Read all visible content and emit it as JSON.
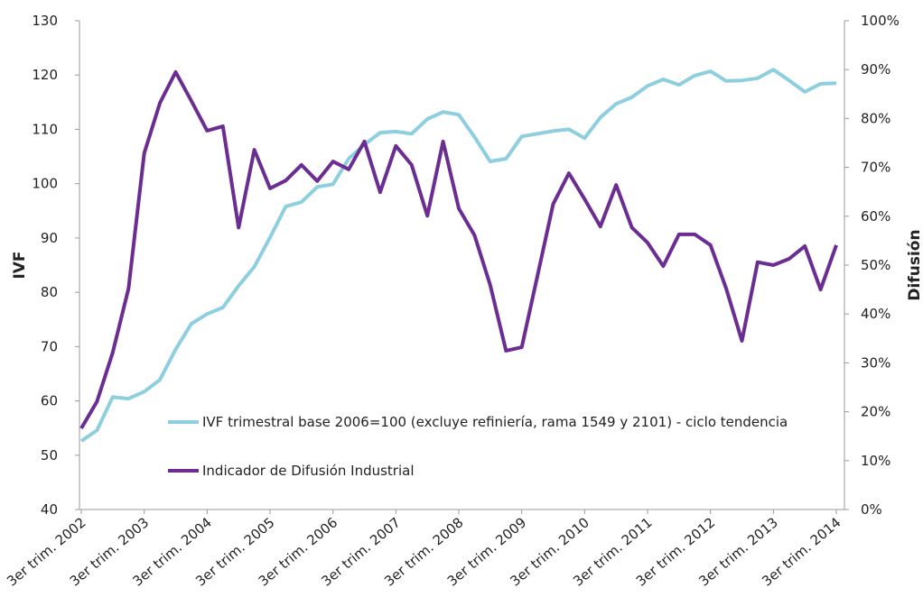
{
  "chart_data": {
    "type": "line",
    "y_label": "IVF",
    "y2_label": "Difusión",
    "categories": [
      "3er trim. 2002",
      null,
      null,
      null,
      "3er trim. 2003",
      null,
      null,
      null,
      "3er trim. 2004",
      null,
      null,
      null,
      "3er trim. 2005",
      null,
      null,
      null,
      "3er trim. 2006",
      null,
      null,
      null,
      "3er trim. 2007",
      null,
      null,
      null,
      "3er trim. 2008",
      null,
      null,
      null,
      "3er trim. 2009",
      null,
      null,
      null,
      "3er trim. 2010",
      null,
      null,
      null,
      "3er trim. 2011",
      null,
      null,
      null,
      "3er trim. 2012",
      null,
      null,
      null,
      "3er trim. 2013",
      null,
      null,
      null,
      "3er trim. 2014"
    ],
    "ylim": [
      40,
      130
    ],
    "yticks": [
      40,
      50,
      60,
      70,
      80,
      90,
      100,
      110,
      120,
      130
    ],
    "y2lim": [
      0,
      100
    ],
    "y2ticks": [
      {
        "value": 0,
        "label": "0%"
      },
      {
        "value": 10,
        "label": "10%"
      },
      {
        "value": 20,
        "label": "20%"
      },
      {
        "value": 30,
        "label": "30%"
      },
      {
        "value": 40,
        "label": "40%"
      },
      {
        "value": 50,
        "label": "50%"
      },
      {
        "value": 60,
        "label": "60%"
      },
      {
        "value": 70,
        "label": "70%"
      },
      {
        "value": 80,
        "label": "80%"
      },
      {
        "value": 90,
        "label": "90%"
      },
      {
        "value": 100,
        "label": "100%"
      }
    ],
    "series": [
      {
        "name": "IVF trimestral base 2006=100 (excluye refiniería, rama 1549 y 2101) - ciclo tendencia",
        "color": "#8dcfdf",
        "values": [
          52.6,
          54.6,
          60.7,
          60.4,
          61.7,
          63.9,
          69.5,
          74.2,
          76.0,
          77.2,
          81.2,
          84.7,
          90.1,
          95.8,
          96.6,
          99.4,
          99.9,
          104.6,
          107.2,
          109.4,
          109.6,
          109.2,
          111.9,
          113.2,
          112.7,
          108.6,
          104.1,
          104.6,
          108.7,
          109.2,
          109.7,
          110.0,
          108.4,
          112.2,
          114.7,
          115.9,
          118.0,
          119.2,
          118.2,
          119.9,
          120.7,
          118.9,
          119.0,
          119.4,
          121.0,
          119.0,
          116.9,
          118.4,
          118.5
        ]
      },
      {
        "name": "Indicador de Difusión Industrial",
        "color": "#6b2d91",
        "axis": "y2",
        "values": [
          16.6,
          22.1,
          32.1,
          45.2,
          72.9,
          83.2,
          89.5,
          83.6,
          77.5,
          78.4,
          57.7,
          73.6,
          65.7,
          67.3,
          70.5,
          67.2,
          71.2,
          69.6,
          75.3,
          64.9,
          74.4,
          70.5,
          60.1,
          75.3,
          61.6,
          56.1,
          45.9,
          32.5,
          33.2,
          47.8,
          62.5,
          68.8,
          63.5,
          57.9,
          66.4,
          57.7,
          54.6,
          49.8,
          56.3,
          56.3,
          54.1,
          45.2,
          34.5,
          50.6,
          50.0,
          51.3,
          53.9,
          45.0,
          54.1
        ]
      }
    ]
  }
}
